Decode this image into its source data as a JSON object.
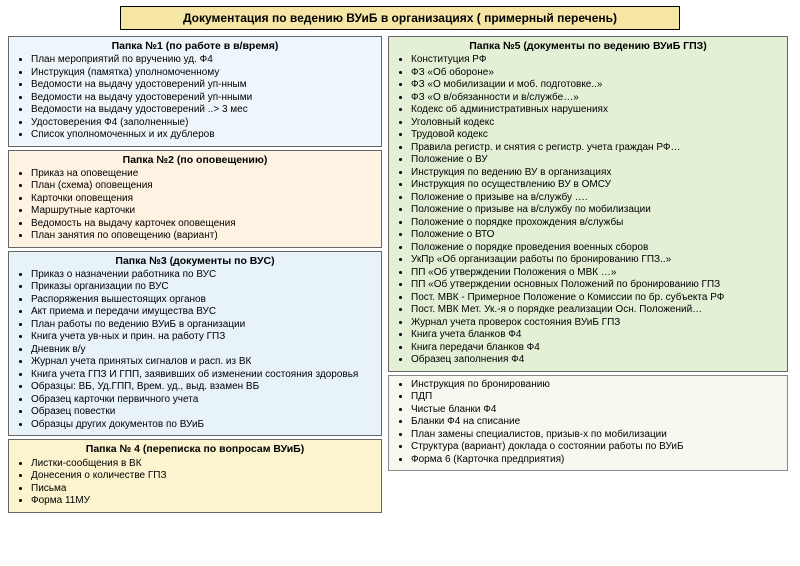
{
  "header": "Документация  по ведению ВУиБ в организациях ( примерный перечень)",
  "p1": {
    "title": "Папка №1 (по работе в в/время)",
    "items": [
      "План мероприятий по вручению уд. Ф4",
      "Инструкция (памятка) уполномоченному",
      "Ведомости на выдачу удостоверений уп-нным",
      "Ведомости на выдачу удостоверений уп-нными",
      "Ведомости на выдачу удостоверений ..> 3 мес",
      "Удостоверения Ф4 (заполненные)",
      "Список уполномоченных и их дублеров"
    ]
  },
  "p2": {
    "title": "Папка №2 (по оповещению)",
    "items": [
      "Приказ на оповещение",
      "План (схема) оповещения",
      "Карточки оповещения",
      "Маршрутные карточки",
      "Ведомость на выдачу карточек оповещения",
      "План занятия по оповещению (вариант)"
    ]
  },
  "p3": {
    "title": "Папка №3 (документы по ВУС)",
    "items": [
      "Приказ о назначении работника по ВУС",
      "Приказы организации по ВУС",
      "Распоряжения вышестоящих органов",
      "Акт приема и передачи имущества ВУС",
      "План работы по ведению ВУиБ в организации",
      "Книга учета ув-ных и прин. на работу ГПЗ",
      "Дневник в/у",
      " Журнал учета принятых сигналов и расп. из ВК",
      "Книга учета ГПЗ И ГПП, заявивших об изменении состояния здоровья",
      "Образцы: ВБ, Уд.ГПП, Врем. уд., выд. взамен ВБ",
      "Образец карточки первичного учета",
      "Образец повестки",
      "Образцы других документов по ВУиБ"
    ]
  },
  "p4": {
    "title": "Папка № 4 (переписка по вопросам ВУиБ)",
    "items": [
      "Листки-сообщения в ВК",
      "Донесения о количестве ГПЗ",
      "Письма",
      "Форма 11МУ"
    ]
  },
  "p5": {
    "title": "Папка №5 (документы по ведению ВУиБ ГПЗ)",
    "items": [
      "Конституция РФ",
      "ФЗ «Об обороне»",
      "ФЗ «О мобилизации и моб. подготовке..»",
      "ФЗ «О в/обязанности и в/службе…»",
      "Кодекс об административных нарушениях",
      "Уголовный кодекс",
      "Трудовой кодекс",
      "Правила регистр. и снятия с регистр. учета граждан РФ…",
      "Положение о ВУ",
      "Инструкция по ведению ВУ в организациях",
      "Инструкция по осуществлению ВУ в ОМСУ",
      "Положение о призыве на в/службу ….",
      "Положение о призыве на в/службу по мобилизации",
      "Положение о порядке прохождения в/службы",
      "Положение о ВТО",
      "Положение о порядке проведения военных сборов",
      "УкПр «Об организации работы по бронированию ГПЗ..»",
      "ПП «Об утверждении Положения о МВК …»",
      "ПП «Об утверждении основных Положений по бронированию ГПЗ",
      "Пост. МВК -  Примерное Положение о Комиссии по бр. субъекта РФ",
      "Пост. МВК Мет. Ук.-я о порядке реализации Осн. Положений…",
      "Журнал учета проверок состояния ВУиБ ГПЗ",
      "Книга учета бланков Ф4",
      "Книга передачи бланков Ф4",
      "Образец заполнения Ф4"
    ]
  },
  "p6": {
    "items": [
      "Инструкция по бронированию",
      "ПДП",
      "Чистые бланки Ф4",
      "Бланки Ф4 на списание",
      "План замены специалистов, призыв-х по мобилизации",
      "Структура (вариант) доклада о состоянии работы по ВУиБ",
      "Форма 6 (Карточка предприятия)"
    ]
  }
}
